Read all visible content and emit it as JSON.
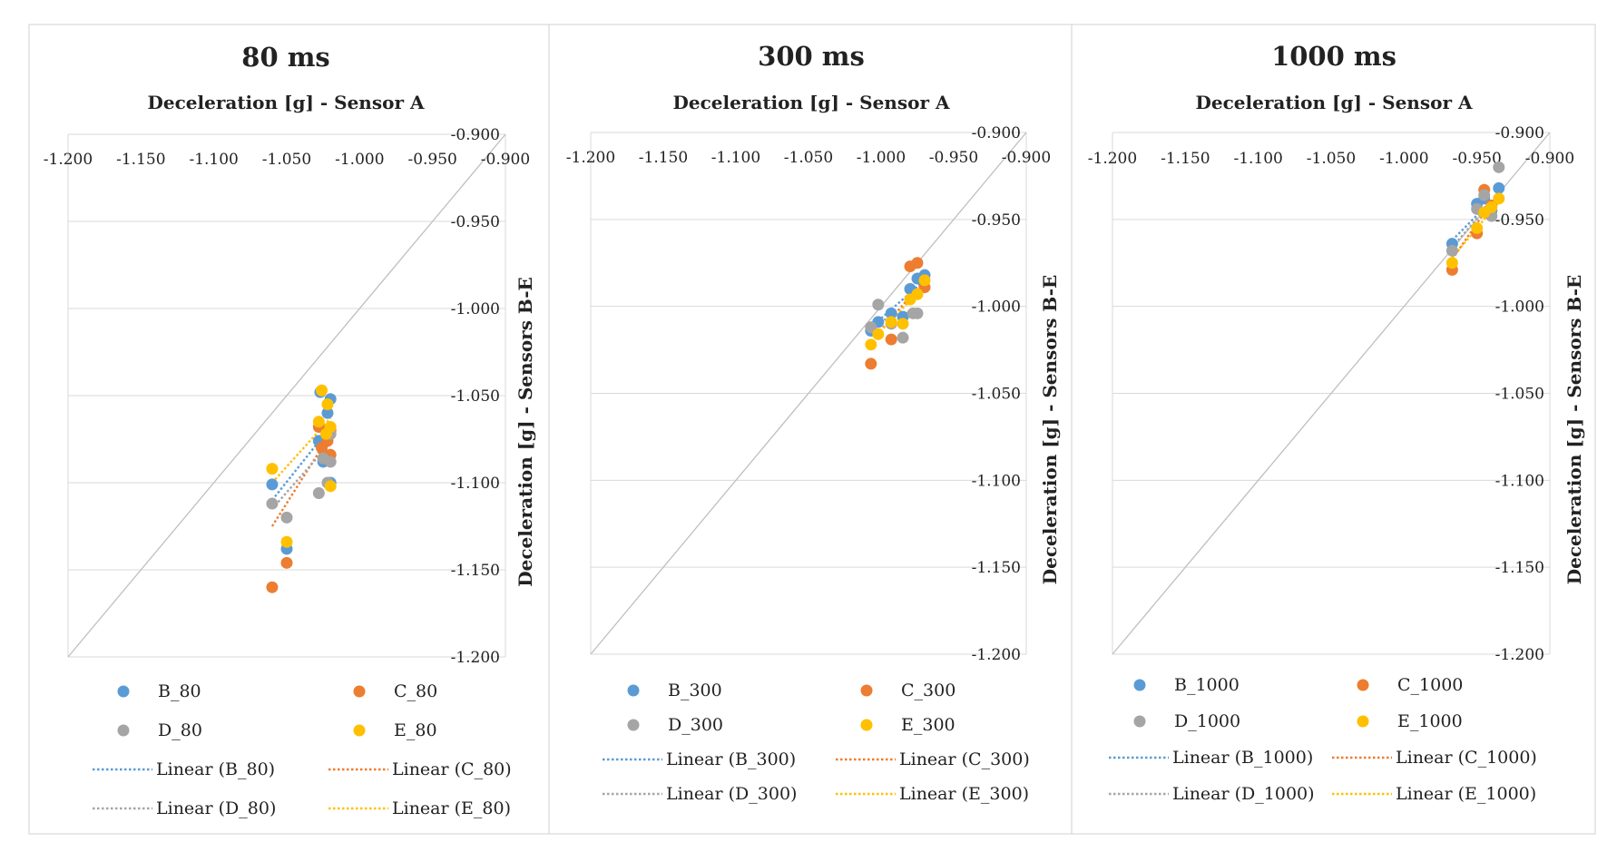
{
  "colors": {
    "B": "#5B9BD5",
    "C": "#ED7D31",
    "D": "#A5A5A5",
    "E": "#FFC000",
    "grid": "#D9D9D9",
    "diag": "#BFBFBF",
    "border": "#D0D0D0"
  },
  "chart_data": [
    {
      "type": "scatter",
      "title": "80 ms",
      "xlabel": "Deceleration [g] - Sensor A",
      "ylabel": "Deceleration [g] - Sensors B-E",
      "xlim": [
        -1.2,
        -0.9
      ],
      "ylim": [
        -1.2,
        -0.9
      ],
      "x_ticks": [
        "-1.200",
        "-1.150",
        "-1.100",
        "-1.050",
        "-1.000",
        "-0.950",
        "-0.900"
      ],
      "y_ticks": [
        "-0.900",
        "-0.950",
        "-1.000",
        "-1.050",
        "-1.100",
        "-1.150",
        "-1.200"
      ],
      "diagonal": true,
      "series": [
        {
          "name": "B_80",
          "key": "B",
          "x": [
            -1.06,
            -1.05,
            -1.028,
            -1.027,
            -1.025,
            -1.022,
            -1.02,
            -1.02
          ],
          "y": [
            -1.101,
            -1.138,
            -1.076,
            -1.048,
            -1.088,
            -1.06,
            -1.052,
            -1.1
          ],
          "trend": [
            [
              -1.06,
              -1.11
            ],
            [
              -1.02,
              -1.068
            ]
          ]
        },
        {
          "name": "C_80",
          "key": "C",
          "x": [
            -1.06,
            -1.05,
            -1.028,
            -1.026,
            -1.022,
            -1.02,
            -1.02
          ],
          "y": [
            -1.16,
            -1.146,
            -1.068,
            -1.08,
            -1.076,
            -1.084,
            -1.07
          ],
          "trend": [
            [
              -1.06,
              -1.125
            ],
            [
              -1.02,
              -1.072
            ]
          ]
        },
        {
          "name": "D_80",
          "key": "D",
          "x": [
            -1.06,
            -1.05,
            -1.028,
            -1.025,
            -1.022,
            -1.02,
            -1.02
          ],
          "y": [
            -1.112,
            -1.12,
            -1.106,
            -1.086,
            -1.1,
            -1.088,
            -1.072
          ],
          "trend": [
            [
              -1.06,
              -1.115
            ],
            [
              -1.02,
              -1.077
            ]
          ]
        },
        {
          "name": "E_80",
          "key": "E",
          "x": [
            -1.06,
            -1.05,
            -1.028,
            -1.026,
            -1.023,
            -1.022,
            -1.02,
            -1.02
          ],
          "y": [
            -1.092,
            -1.134,
            -1.065,
            -1.047,
            -1.072,
            -1.055,
            -1.068,
            -1.102
          ],
          "trend": [
            [
              -1.06,
              -1.1
            ],
            [
              -1.02,
              -1.063
            ]
          ]
        }
      ],
      "legend": [
        "B_80",
        "C_80",
        "D_80",
        "E_80",
        "Linear (B_80)",
        "Linear (C_80)",
        "Linear (D_80)",
        "Linear (E_80)"
      ]
    },
    {
      "type": "scatter",
      "title": "300 ms",
      "xlabel": "Deceleration [g] - Sensor A",
      "ylabel": "Deceleration [g] - Sensors B-E",
      "xlim": [
        -1.2,
        -0.9
      ],
      "ylim": [
        -1.2,
        -0.9
      ],
      "x_ticks": [
        "-1.200",
        "-1.150",
        "-1.100",
        "-1.050",
        "-1.000",
        "-0.950",
        "-0.900"
      ],
      "y_ticks": [
        "-0.900",
        "-0.950",
        "-1.000",
        "-1.050",
        "-1.100",
        "-1.150",
        "-1.200"
      ],
      "diagonal": true,
      "series": [
        {
          "name": "B_300",
          "key": "B",
          "x": [
            -1.007,
            -1.002,
            -0.993,
            -0.985,
            -0.98,
            -0.975,
            -0.97
          ],
          "y": [
            -1.014,
            -1.009,
            -1.004,
            -1.006,
            -0.99,
            -0.984,
            -0.982
          ],
          "trend": [
            [
              -1.007,
              -1.012
            ],
            [
              -0.97,
              -0.985
            ]
          ]
        },
        {
          "name": "C_300",
          "key": "C",
          "x": [
            -1.007,
            -0.993,
            -0.98,
            -0.975,
            -0.97
          ],
          "y": [
            -1.033,
            -1.019,
            -0.977,
            -0.975,
            -0.989
          ],
          "trend": [
            [
              -1.007,
              -1.02
            ],
            [
              -0.97,
              -0.985
            ]
          ]
        },
        {
          "name": "D_300",
          "key": "D",
          "x": [
            -1.007,
            -1.002,
            -0.993,
            -0.985,
            -0.978,
            -0.975
          ],
          "y": [
            -1.012,
            -0.999,
            -1.01,
            -1.018,
            -1.004,
            -1.004
          ],
          "trend": [
            [
              -1.007,
              -1.01
            ],
            [
              -0.975,
              -1.002
            ]
          ]
        },
        {
          "name": "E_300",
          "key": "E",
          "x": [
            -1.007,
            -1.002,
            -0.993,
            -0.985,
            -0.98,
            -0.975,
            -0.97
          ],
          "y": [
            -1.022,
            -1.016,
            -1.009,
            -1.01,
            -0.996,
            -0.993,
            -0.985
          ],
          "trend": [
            [
              -1.007,
              -1.02
            ],
            [
              -0.97,
              -0.988
            ]
          ]
        }
      ],
      "legend": [
        "B_300",
        "C_300",
        "D_300",
        "E_300",
        "Linear (B_300)",
        "Linear (C_300)",
        "Linear (D_300)",
        "Linear (E_300)"
      ]
    },
    {
      "type": "scatter",
      "title": "1000 ms",
      "xlabel": "Deceleration [g] - Sensor A",
      "ylabel": "Deceleration [g] - Sensors B-E",
      "xlim": [
        -1.2,
        -0.9
      ],
      "ylim": [
        -1.2,
        -0.9
      ],
      "x_ticks": [
        "-1.200",
        "-1.150",
        "-1.100",
        "-1.050",
        "-1.000",
        "-0.950",
        "-0.900"
      ],
      "y_ticks": [
        "-0.900",
        "-0.950",
        "-1.000",
        "-1.050",
        "-1.100",
        "-1.150",
        "-1.200"
      ],
      "diagonal": true,
      "series": [
        {
          "name": "B_1000",
          "key": "B",
          "x": [
            -0.967,
            -0.95,
            -0.945,
            -0.94,
            -0.935
          ],
          "y": [
            -0.964,
            -0.941,
            -0.938,
            -0.945,
            -0.932
          ],
          "trend": [
            [
              -0.967,
              -0.962
            ],
            [
              -0.935,
              -0.935
            ]
          ]
        },
        {
          "name": "C_1000",
          "key": "C",
          "x": [
            -0.967,
            -0.95,
            -0.945,
            -0.94
          ],
          "y": [
            -0.979,
            -0.958,
            -0.933,
            -0.942
          ],
          "trend": [
            [
              -0.967,
              -0.973
            ],
            [
              -0.94,
              -0.94
            ]
          ]
        },
        {
          "name": "D_1000",
          "key": "D",
          "x": [
            -0.967,
            -0.95,
            -0.945,
            -0.94,
            -0.935
          ],
          "y": [
            -0.968,
            -0.944,
            -0.936,
            -0.948,
            -0.92
          ],
          "trend": [
            [
              -0.967,
              -0.966
            ],
            [
              -0.935,
              -0.935
            ]
          ]
        },
        {
          "name": "E_1000",
          "key": "E",
          "x": [
            -0.967,
            -0.95,
            -0.945,
            -0.94,
            -0.935
          ],
          "y": [
            -0.975,
            -0.955,
            -0.946,
            -0.943,
            -0.938
          ],
          "trend": [
            [
              -0.967,
              -0.972
            ],
            [
              -0.935,
              -0.94
            ]
          ]
        }
      ],
      "legend": [
        "B_1000",
        "C_1000",
        "D_1000",
        "E_1000",
        "Linear (B_1000)",
        "Linear (C_1000)",
        "Linear (D_1000)",
        "Linear (E_1000)"
      ]
    }
  ]
}
